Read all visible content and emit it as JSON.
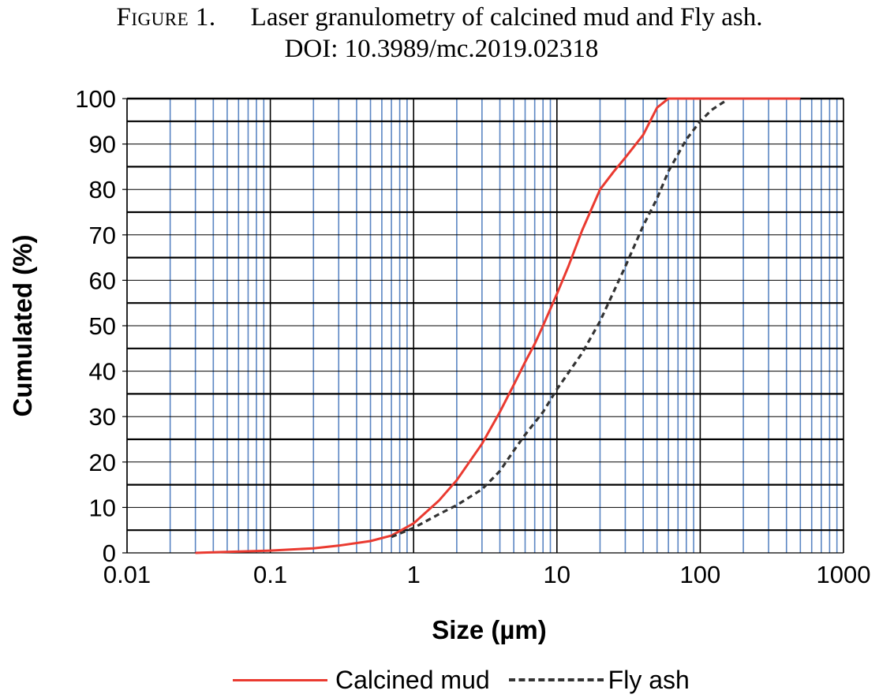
{
  "caption": {
    "label": "Figure 1.",
    "title": "Laser granulometry of calcined mud and Fly ash.",
    "doi": "DOI: 10.3989/mc.2019.02318"
  },
  "chart_data": {
    "type": "line",
    "xlabel": "Size (µm)",
    "ylabel": "Cumulated (%)",
    "x_scale": "log",
    "xlim": [
      0.01,
      1000
    ],
    "ylim": [
      0,
      100
    ],
    "x_ticks": [
      "0.01",
      "0.1",
      "1",
      "10",
      "100",
      "1000"
    ],
    "y_ticks": [
      "0",
      "10",
      "20",
      "30",
      "40",
      "50",
      "60",
      "70",
      "80",
      "90",
      "100"
    ],
    "grid": true,
    "legend_position": "bottom",
    "series": [
      {
        "name": "Calcined mud",
        "color": "#ea3a30",
        "style": "solid",
        "x": [
          0.03,
          0.05,
          0.1,
          0.2,
          0.3,
          0.5,
          0.7,
          1,
          1.5,
          2,
          3,
          4,
          5,
          6,
          7,
          8,
          10,
          12,
          15,
          20,
          25,
          30,
          40,
          50,
          60,
          70,
          100,
          200,
          500
        ],
        "y": [
          0,
          0.2,
          0.5,
          1,
          1.6,
          2.6,
          3.8,
          6.5,
          11.5,
          16,
          24,
          31,
          37,
          42,
          46,
          50,
          57,
          63,
          71,
          80,
          84,
          87,
          92,
          98,
          100,
          100,
          100,
          100,
          100
        ]
      },
      {
        "name": "Fly ash",
        "color": "#333333",
        "style": "dashed",
        "x": [
          0.7,
          1,
          1.5,
          2,
          3,
          4,
          5,
          6,
          8,
          10,
          15,
          20,
          30,
          40,
          50,
          60,
          80,
          100,
          120,
          150
        ],
        "y": [
          3.5,
          5.5,
          8.5,
          10.5,
          14,
          18,
          22.5,
          26,
          31,
          36,
          44,
          51,
          63,
          72,
          78,
          84,
          91,
          95,
          97.5,
          99.5
        ]
      }
    ]
  },
  "legend": {
    "items": [
      "Calcined mud",
      "Fly ash"
    ]
  }
}
